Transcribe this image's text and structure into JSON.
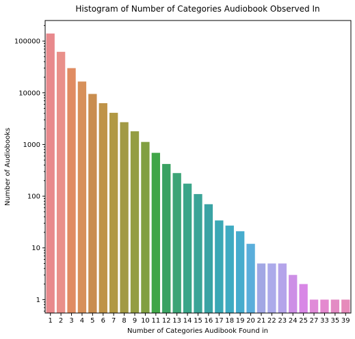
{
  "chart_data": {
    "type": "bar",
    "title": "Histogram of Number of Categories Audiobook Observed In",
    "xlabel": "Number of Categories Audibook Found in",
    "ylabel": "Number of Audiobooks",
    "yscale": "log",
    "ylim": [
      0.55,
      250000
    ],
    "yticks": [
      1,
      10,
      100,
      1000,
      10000,
      100000
    ],
    "ytick_labels": [
      "1",
      "10",
      "100",
      "1000",
      "10000",
      "100000"
    ],
    "grid": false,
    "categories": [
      "1",
      "2",
      "3",
      "4",
      "5",
      "6",
      "7",
      "8",
      "9",
      "10",
      "11",
      "12",
      "13",
      "14",
      "15",
      "16",
      "17",
      "18",
      "19",
      "20",
      "21",
      "22",
      "23",
      "24",
      "25",
      "27",
      "33",
      "35",
      "39"
    ],
    "values": [
      140000,
      62000,
      30000,
      16500,
      9500,
      6300,
      4100,
      2700,
      1800,
      1120,
      690,
      420,
      280,
      175,
      110,
      70,
      34,
      27,
      21,
      12,
      5,
      5,
      5,
      3,
      2,
      1,
      1,
      1,
      1
    ],
    "colors": [
      "#e8898c",
      "#e9908a",
      "#e08c62",
      "#d7905a",
      "#c98d4f",
      "#bf9348",
      "#b19843",
      "#a29a45",
      "#949d42",
      "#819f41",
      "#40a648",
      "#3aa262",
      "#3ca476",
      "#3aa588",
      "#3ba497",
      "#3aa3a4",
      "#3ba8b5",
      "#3fabc2",
      "#47accd",
      "#5aaedb",
      "#a2a7e4",
      "#acaaea",
      "#b4a4ea",
      "#cd8fe6",
      "#d887e6",
      "#e08bd8",
      "#e489cf",
      "#e38bc4",
      "#e68bbb"
    ]
  }
}
